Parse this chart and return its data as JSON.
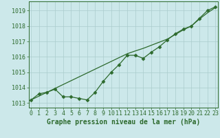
{
  "line1_x": [
    0,
    1,
    2,
    3,
    4,
    5,
    6,
    7,
    8,
    9,
    10,
    11,
    12,
    13,
    14,
    15,
    16,
    17,
    18,
    19,
    20,
    21,
    22,
    23
  ],
  "line1_y": [
    1013.2,
    1013.45,
    1013.7,
    1013.95,
    1014.2,
    1014.45,
    1014.7,
    1014.95,
    1015.2,
    1015.45,
    1015.7,
    1015.95,
    1016.2,
    1016.38,
    1016.55,
    1016.75,
    1016.95,
    1017.15,
    1017.45,
    1017.75,
    1018.0,
    1018.45,
    1018.85,
    1019.2
  ],
  "line2_x": [
    0,
    1,
    2,
    3,
    4,
    5,
    6,
    7,
    8,
    9,
    10,
    11,
    12,
    13,
    14,
    15,
    16,
    17,
    18,
    19,
    20,
    21,
    22,
    23
  ],
  "line2_y": [
    1013.2,
    1013.6,
    1013.7,
    1013.9,
    1013.4,
    1013.4,
    1013.3,
    1013.2,
    1013.7,
    1014.4,
    1015.0,
    1015.5,
    1016.1,
    1016.1,
    1015.9,
    1016.3,
    1016.65,
    1017.1,
    1017.5,
    1017.8,
    1018.0,
    1018.5,
    1019.0,
    1019.25
  ],
  "line_color": "#2d6a2d",
  "bg_color": "#cce8ea",
  "grid_color": "#aacccc",
  "ylabel_ticks": [
    1013,
    1014,
    1015,
    1016,
    1017,
    1018,
    1019
  ],
  "xlabel_ticks": [
    0,
    1,
    2,
    3,
    4,
    5,
    6,
    7,
    8,
    9,
    10,
    11,
    12,
    13,
    14,
    15,
    16,
    17,
    18,
    19,
    20,
    21,
    22,
    23
  ],
  "ylim": [
    1012.7,
    1019.6
  ],
  "xlim": [
    -0.3,
    23.3
  ],
  "xlabel": "Graphe pression niveau de la mer (hPa)",
  "xlabel_fontsize": 7,
  "tick_fontsize": 6,
  "marker": "D",
  "marker_size": 2.5
}
